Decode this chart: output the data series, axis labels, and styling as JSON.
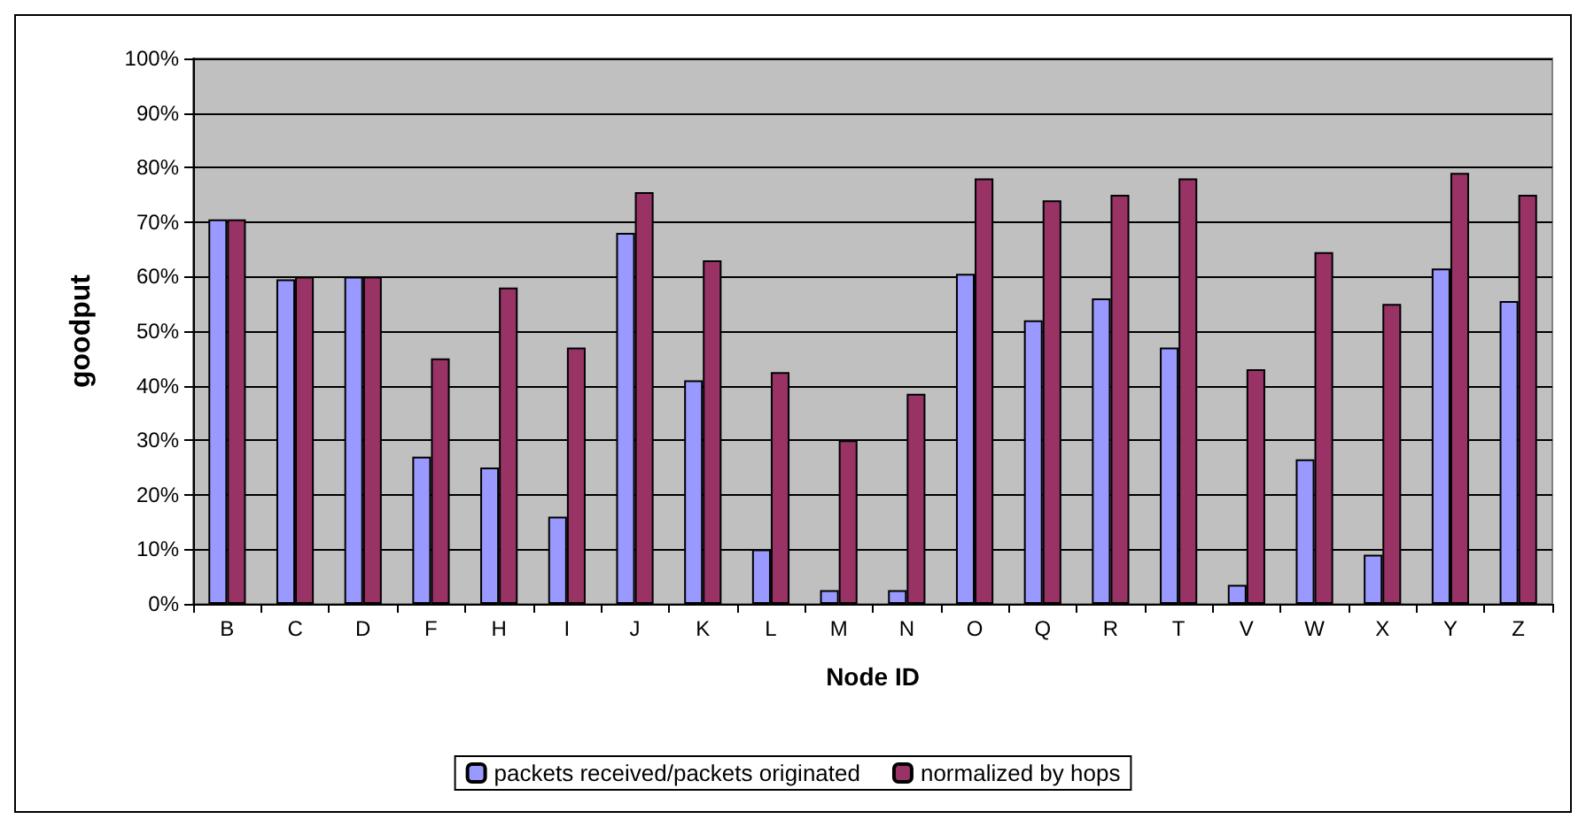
{
  "chart_data": {
    "type": "bar",
    "xlabel": "Node ID",
    "ylabel": "goodput",
    "categories": [
      "B",
      "C",
      "D",
      "F",
      "H",
      "I",
      "J",
      "K",
      "L",
      "M",
      "N",
      "O",
      "Q",
      "R",
      "T",
      "V",
      "W",
      "X",
      "Y",
      "Z"
    ],
    "series": [
      {
        "name": "packets received/packets originated",
        "color": "#9999ff",
        "values": [
          70.5,
          59.5,
          60,
          27,
          25,
          16,
          68,
          41,
          10,
          2.5,
          2.5,
          60.5,
          52,
          56,
          47,
          3.5,
          26.5,
          9,
          61.5,
          55.5
        ]
      },
      {
        "name": "normalized by hops",
        "color": "#993366",
        "values": [
          70.5,
          60,
          60,
          45,
          58,
          47,
          75.5,
          63,
          42.5,
          30,
          38.5,
          78,
          74,
          75,
          78,
          43,
          64.5,
          55,
          79,
          75
        ]
      }
    ],
    "ylim": [
      0,
      100
    ],
    "yticks": [
      {
        "value": 0,
        "label": "0%"
      },
      {
        "value": 10,
        "label": "10%"
      },
      {
        "value": 20,
        "label": "20%"
      },
      {
        "value": 30,
        "label": "30%"
      },
      {
        "value": 40,
        "label": "40%"
      },
      {
        "value": 50,
        "label": "50%"
      },
      {
        "value": 60,
        "label": "60%"
      },
      {
        "value": 70,
        "label": "70%"
      },
      {
        "value": 80,
        "label": "80%"
      },
      {
        "value": 90,
        "label": "90%"
      },
      {
        "value": 100,
        "label": "100%"
      }
    ],
    "grid": "y",
    "legend": "bottom"
  }
}
